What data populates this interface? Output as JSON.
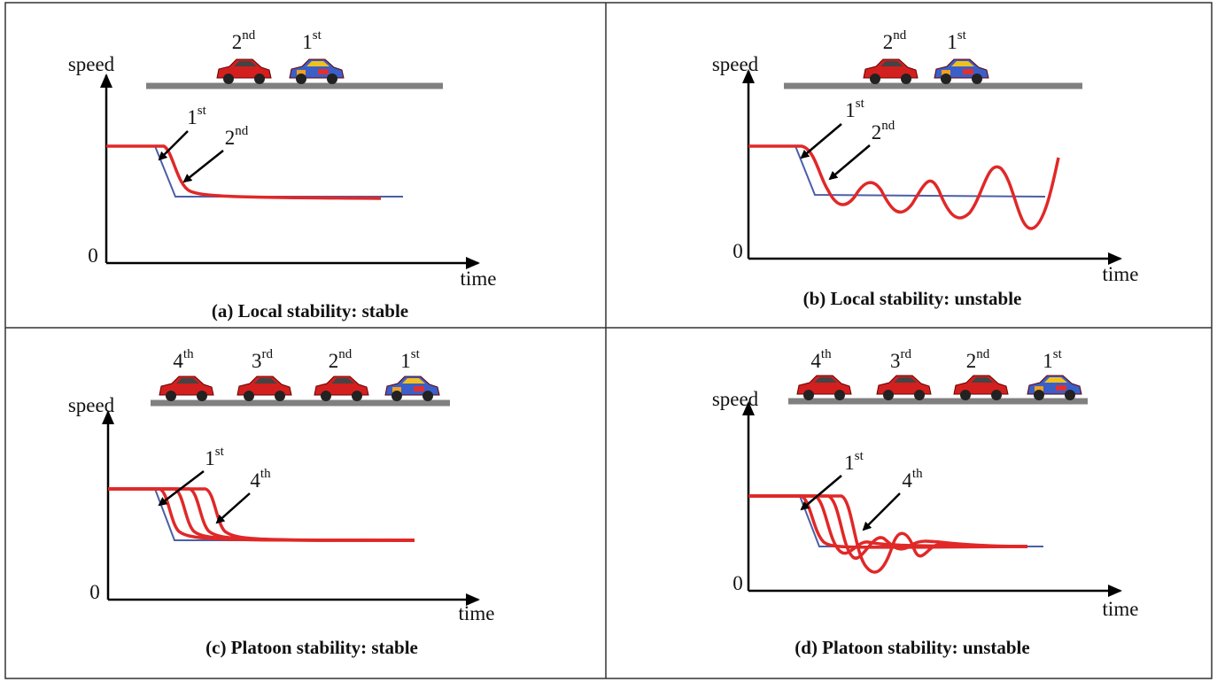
{
  "panels": [
    {
      "caption": "(a) Local stability: stable",
      "y_label": "speed",
      "x_label": "time",
      "origin_label": "0",
      "vehicles": [
        {
          "num": "2",
          "sup": "nd"
        },
        {
          "num": "1",
          "sup": "st"
        }
      ],
      "callouts": [
        {
          "num": "1",
          "sup": "st"
        },
        {
          "num": "2",
          "sup": "nd"
        }
      ]
    },
    {
      "caption": "(b) Local stability: unstable",
      "y_label": "speed",
      "x_label": "time",
      "origin_label": "0",
      "vehicles": [
        {
          "num": "2",
          "sup": "nd"
        },
        {
          "num": "1",
          "sup": "st"
        }
      ],
      "callouts": [
        {
          "num": "1",
          "sup": "st"
        },
        {
          "num": "2",
          "sup": "nd"
        }
      ]
    },
    {
      "caption": "(c) Platoon stability: stable",
      "y_label": "speed",
      "x_label": "time",
      "origin_label": "0",
      "vehicles": [
        {
          "num": "4",
          "sup": "th"
        },
        {
          "num": "3",
          "sup": "rd"
        },
        {
          "num": "2",
          "sup": "nd"
        },
        {
          "num": "1",
          "sup": "st"
        }
      ],
      "callouts": [
        {
          "num": "1",
          "sup": "st"
        },
        {
          "num": "4",
          "sup": "th"
        }
      ]
    },
    {
      "caption": "(d) Platoon stability: unstable",
      "y_label": "speed",
      "x_label": "time",
      "origin_label": "0",
      "vehicles": [
        {
          "num": "4",
          "sup": "th"
        },
        {
          "num": "3",
          "sup": "rd"
        },
        {
          "num": "2",
          "sup": "nd"
        },
        {
          "num": "1",
          "sup": "st"
        }
      ],
      "callouts": [
        {
          "num": "1",
          "sup": "st"
        },
        {
          "num": "4",
          "sup": "th"
        }
      ]
    }
  ]
}
